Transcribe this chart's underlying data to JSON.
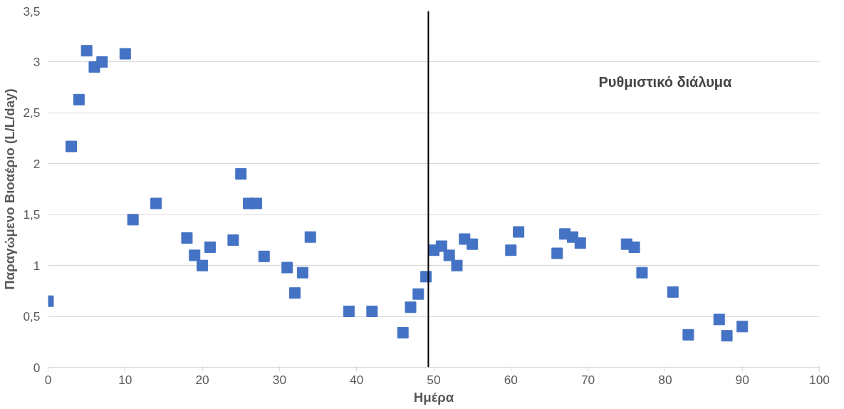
{
  "chart_data": {
    "type": "scatter",
    "xlabel": "Ημέρα",
    "ylabel": "Παραγώμενο Βιοαέριο (L/L/day)",
    "x": [
      0,
      3,
      4,
      5,
      6,
      7,
      10,
      11,
      14,
      18,
      19,
      20,
      21,
      24,
      25,
      26,
      27,
      28,
      31,
      32,
      33,
      34,
      39,
      42,
      46,
      47,
      48,
      49,
      50,
      51,
      52,
      53,
      54,
      55,
      60,
      61,
      66,
      67,
      68,
      69,
      75,
      76,
      77,
      81,
      83,
      87,
      88,
      90
    ],
    "series": [
      {
        "color": "#4472c4",
        "values": [
          0.65,
          2.17,
          2.63,
          3.11,
          2.95,
          3.0,
          3.08,
          1.45,
          1.61,
          1.27,
          1.1,
          1.0,
          1.18,
          1.25,
          1.9,
          1.61,
          1.61,
          1.09,
          0.98,
          0.73,
          0.93,
          1.28,
          0.55,
          0.55,
          0.34,
          0.59,
          0.72,
          0.89,
          1.15,
          1.19,
          1.1,
          1.0,
          1.26,
          1.21,
          1.15,
          1.33,
          1.12,
          1.31,
          1.28,
          1.22,
          1.21,
          1.18,
          0.93,
          0.74,
          0.32,
          0.47,
          0.31,
          0.4
        ]
      }
    ],
    "xlim": [
      0,
      100
    ],
    "xticks": [
      0,
      10,
      20,
      30,
      40,
      50,
      60,
      70,
      80,
      90,
      100
    ],
    "ylim": [
      0,
      3.5
    ],
    "yticks": [
      {
        "value": 0,
        "label": "0"
      },
      {
        "value": 0.5,
        "label": "0,5"
      },
      {
        "value": 1,
        "label": "1"
      },
      {
        "value": 1.5,
        "label": "1,5"
      },
      {
        "value": 2,
        "label": "2"
      },
      {
        "value": 2.5,
        "label": "2,5"
      },
      {
        "value": 3,
        "label": "3"
      },
      {
        "value": 3.5,
        "label": "3,5"
      }
    ],
    "ref_lines": [
      {
        "axis": "x",
        "value": 49.3,
        "color": "#000000"
      }
    ],
    "annotations": [
      "Ρυθμιστικό διάλυμα"
    ],
    "grid": "y",
    "marker": "square"
  }
}
